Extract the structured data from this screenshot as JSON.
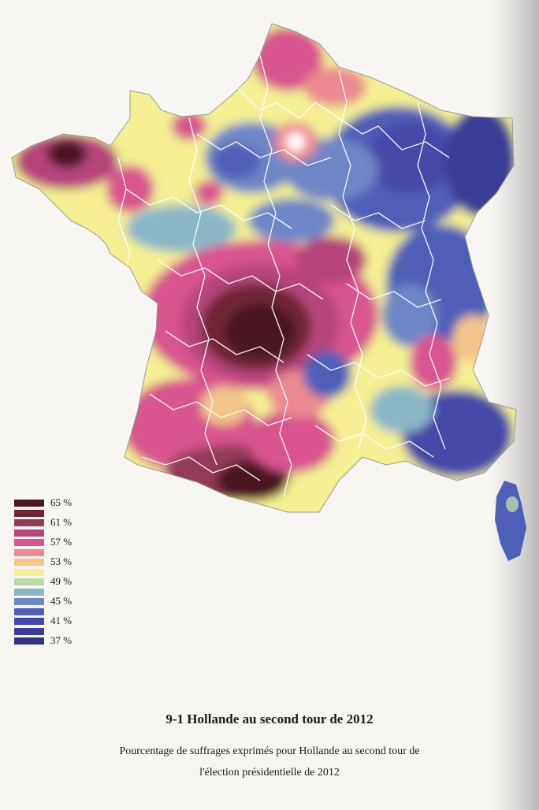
{
  "figure": {
    "title": "9-1  Hollande au second tour de 2012",
    "subtitle_line1": "Pourcentage de suffrages exprimés pour Hollande au second tour de",
    "subtitle_line2": "l'élection présidentielle de 2012"
  },
  "legend": {
    "items": [
      {
        "label": "65 %",
        "color": "#4a1620"
      },
      {
        "label": "",
        "color": "#6e2536"
      },
      {
        "label": "61 %",
        "color": "#933a59"
      },
      {
        "label": "",
        "color": "#b5447a"
      },
      {
        "label": "57 %",
        "color": "#d8548e"
      },
      {
        "label": "",
        "color": "#ec8a90"
      },
      {
        "label": "53 %",
        "color": "#f4c58a"
      },
      {
        "label": "",
        "color": "#f3ef92"
      },
      {
        "label": "49 %",
        "color": "#b9d9a6"
      },
      {
        "label": "",
        "color": "#8ab6c8"
      },
      {
        "label": "45 %",
        "color": "#6d86c6"
      },
      {
        "label": "",
        "color": "#4f5fb8"
      },
      {
        "label": "41 %",
        "color": "#4449a8"
      },
      {
        "label": "",
        "color": "#3a3c96"
      },
      {
        "label": "37 %",
        "color": "#33337c"
      }
    ]
  },
  "colors": {
    "boundary": "#ffffff",
    "page_background": "#f7f6f3"
  }
}
